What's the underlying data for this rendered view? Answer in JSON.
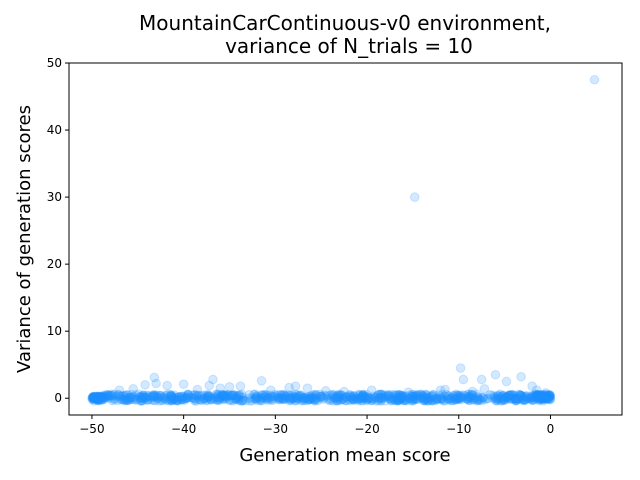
{
  "chart_data": {
    "type": "scatter",
    "title_line1": "MountainCarContinuous-v0 environment,",
    "title_line2": "variance of N_trials = 10",
    "xlabel": "Generation mean score",
    "ylabel": "Variance of generation scores",
    "xlim": [
      -52.5,
      7.8
    ],
    "ylim": [
      -2.5,
      50
    ],
    "xticks": [
      -50,
      -40,
      -30,
      -20,
      -10,
      0
    ],
    "yticks": [
      0,
      10,
      20,
      30,
      40,
      50
    ],
    "xtick_labels": [
      "−50",
      "−40",
      "−30",
      "−20",
      "−10",
      "0"
    ],
    "ytick_labels": [
      "0",
      "10",
      "20",
      "30",
      "40",
      "50"
    ],
    "grid": false,
    "point_color": "#1E90FF",
    "point_alpha": 0.2,
    "band": {
      "x_range": [
        -50,
        0
      ],
      "y_range": [
        -0.4,
        0.6
      ],
      "count": 900
    },
    "points": [
      {
        "x": 4.8,
        "y": 47.5
      },
      {
        "x": -14.8,
        "y": 30.0
      },
      {
        "x": -9.8,
        "y": 4.5
      },
      {
        "x": -6.0,
        "y": 3.5
      },
      {
        "x": -3.2,
        "y": 3.2
      },
      {
        "x": -43.2,
        "y": 3.1
      },
      {
        "x": -9.5,
        "y": 2.8
      },
      {
        "x": -7.5,
        "y": 2.8
      },
      {
        "x": -36.8,
        "y": 2.8
      },
      {
        "x": -31.5,
        "y": 2.6
      },
      {
        "x": -4.8,
        "y": 2.5
      },
      {
        "x": -43.0,
        "y": 2.2
      },
      {
        "x": -40.0,
        "y": 2.1
      },
      {
        "x": -44.2,
        "y": 2.0
      },
      {
        "x": -41.8,
        "y": 1.9
      },
      {
        "x": -37.2,
        "y": 1.9
      },
      {
        "x": -35.0,
        "y": 1.7
      },
      {
        "x": -33.8,
        "y": 1.8
      },
      {
        "x": -28.5,
        "y": 1.6
      },
      {
        "x": -27.8,
        "y": 1.8
      },
      {
        "x": -26.5,
        "y": 1.5
      },
      {
        "x": -36.0,
        "y": 1.5
      },
      {
        "x": -2.0,
        "y": 1.8
      },
      {
        "x": -1.5,
        "y": 1.2
      },
      {
        "x": -7.2,
        "y": 1.4
      },
      {
        "x": -12.0,
        "y": 1.2
      },
      {
        "x": -19.5,
        "y": 1.2
      },
      {
        "x": -22.5,
        "y": 1.0
      },
      {
        "x": -45.5,
        "y": 1.4
      },
      {
        "x": -47.0,
        "y": 1.2
      },
      {
        "x": -38.5,
        "y": 1.3
      },
      {
        "x": -30.5,
        "y": 1.2
      },
      {
        "x": -24.5,
        "y": 1.1
      },
      {
        "x": -15.5,
        "y": 0.9
      },
      {
        "x": -11.5,
        "y": 1.3
      },
      {
        "x": -8.5,
        "y": 1.0
      },
      {
        "x": -0.5,
        "y": 0.8
      }
    ]
  }
}
